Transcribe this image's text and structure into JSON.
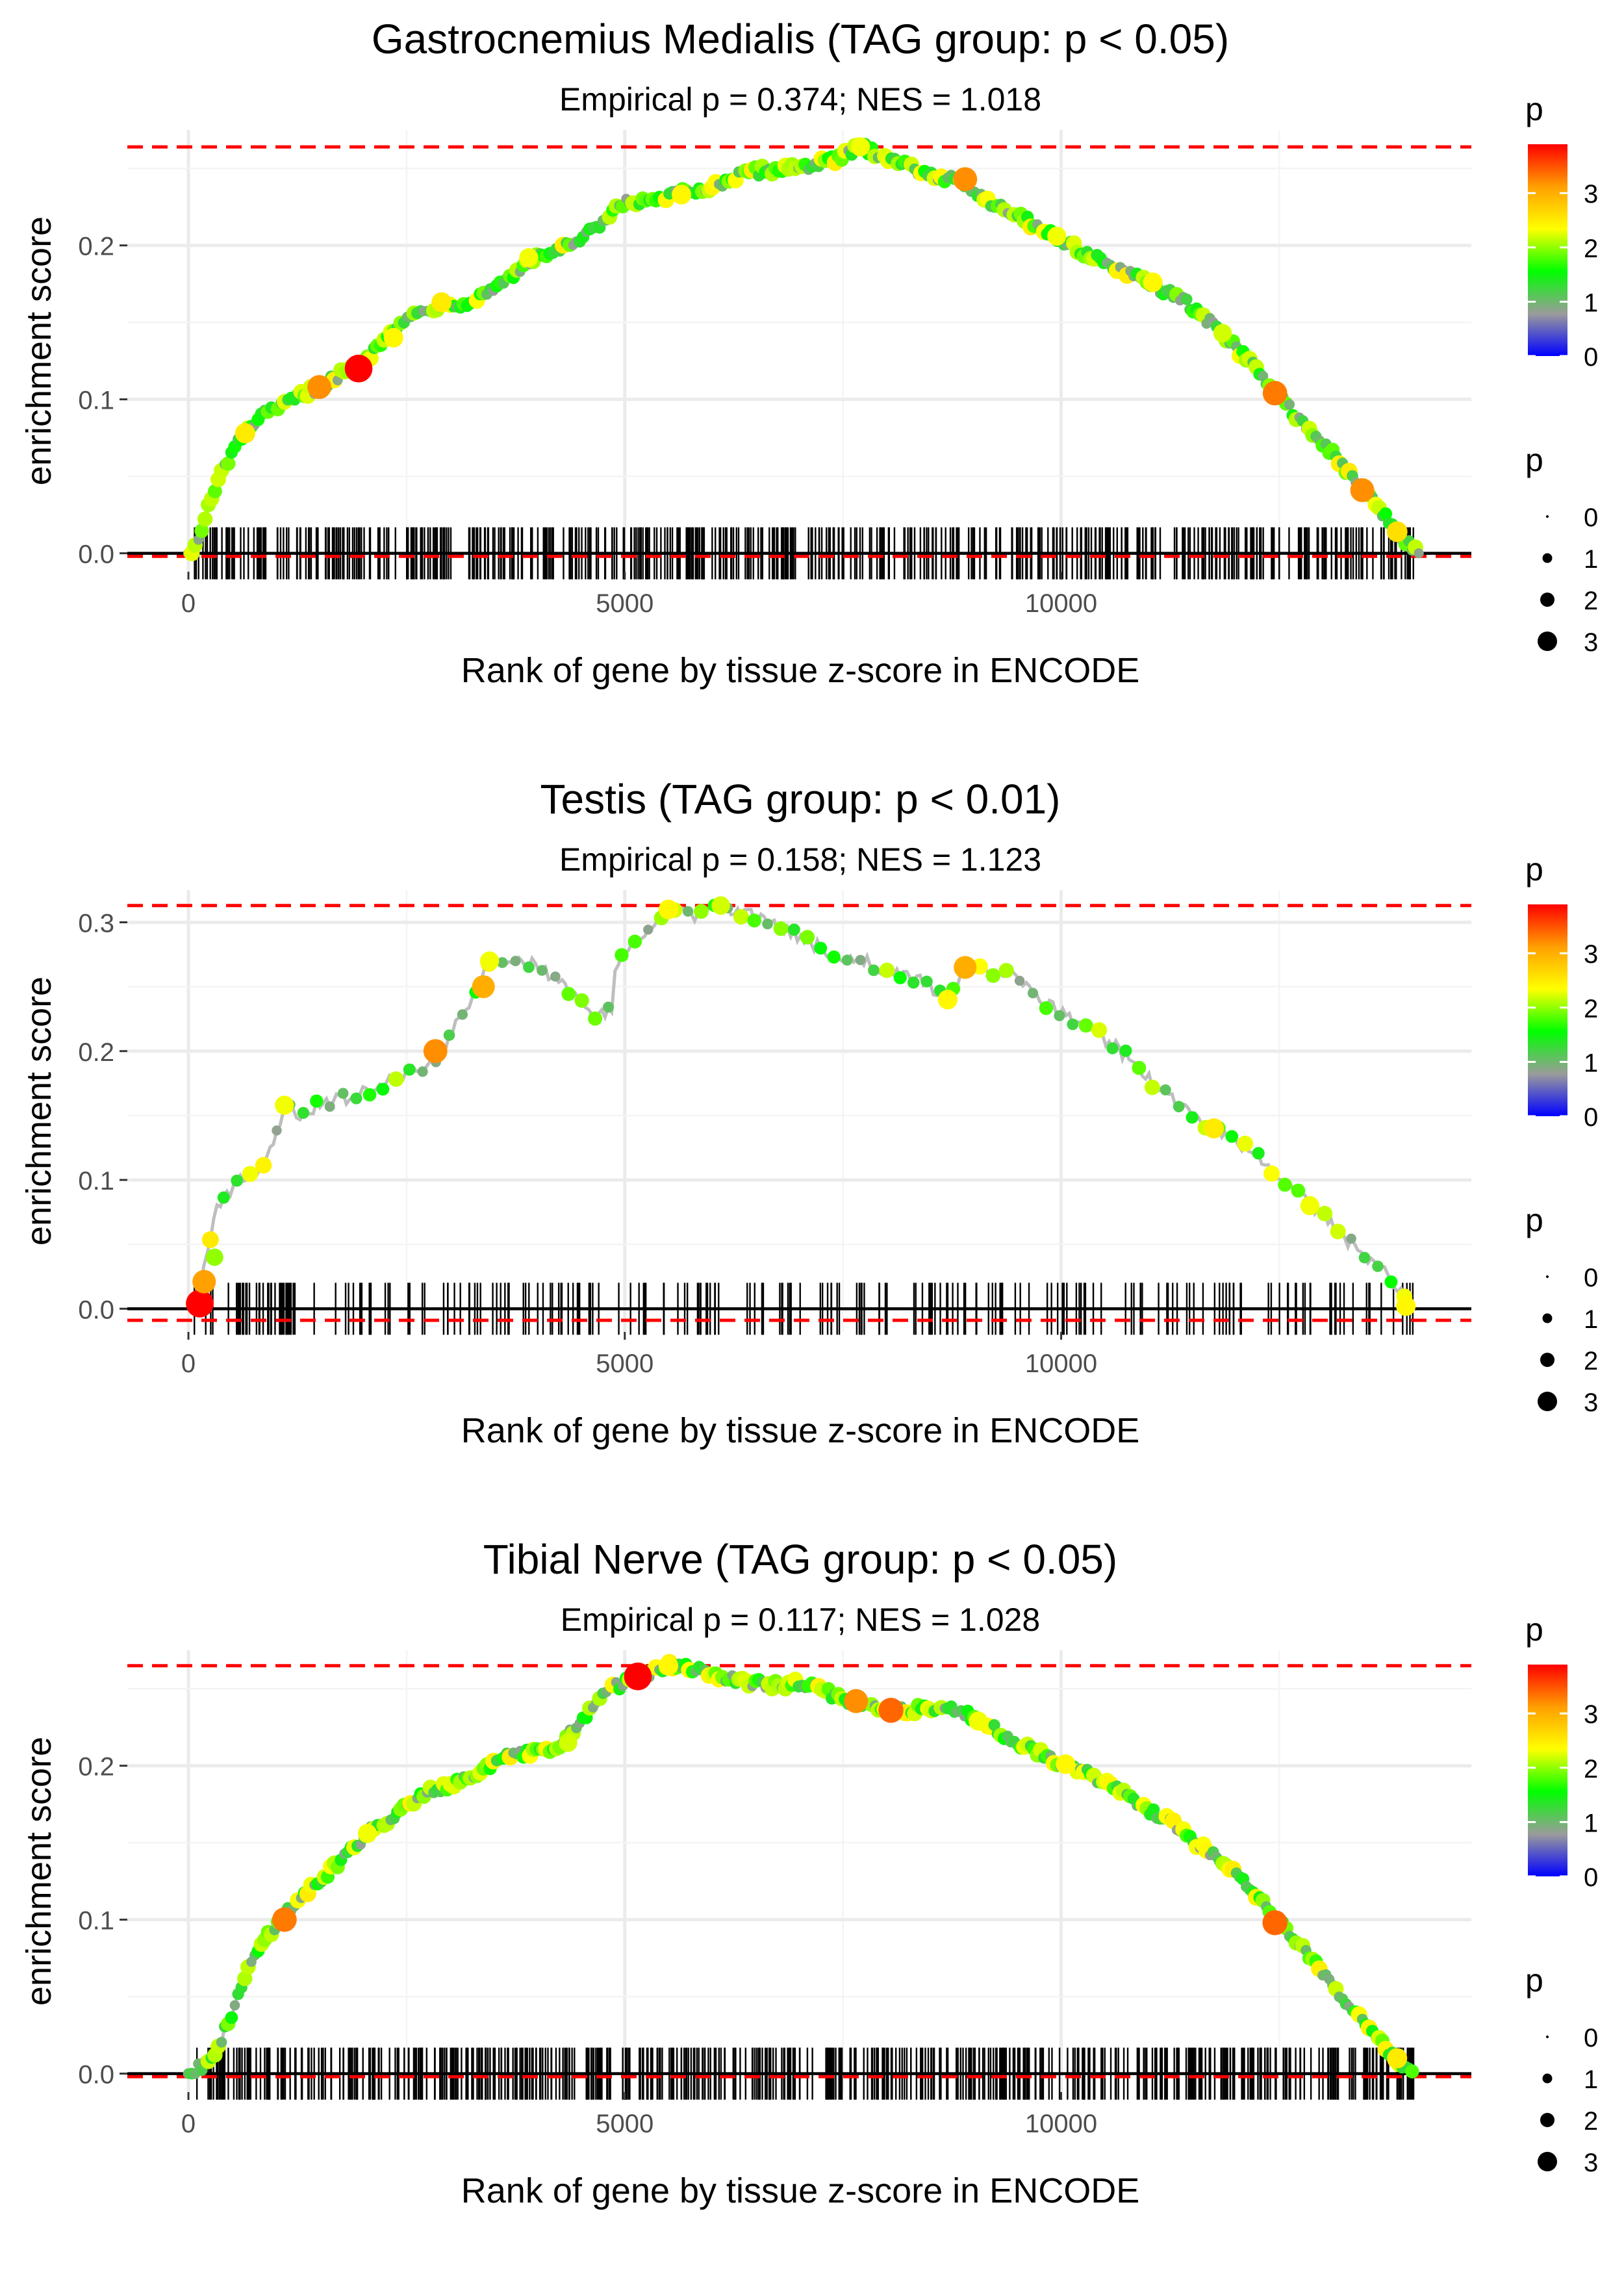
{
  "chart_data": [
    {
      "type": "line",
      "title": "Gastrocnemius Medialis (TAG group: p < 0.05)",
      "subtitle": "Empirical p = 0.374; NES = 1.018",
      "xlabel": "Rank of gene by tissue z-score in ENCODE",
      "ylabel": "enrichment score",
      "xlim": [
        -700,
        14700
      ],
      "ylim": [
        -0.012,
        0.275
      ],
      "xticks": [
        {
          "value": 0,
          "label": "0"
        },
        {
          "value": 5000,
          "label": "5000"
        },
        {
          "value": 10000,
          "label": "10000"
        }
      ],
      "yticks": [
        {
          "value": 0.0,
          "label": "0.0"
        },
        {
          "value": 0.1,
          "label": "0.1"
        },
        {
          "value": 0.2,
          "label": "0.2"
        }
      ],
      "max_es": 0.264,
      "min_es": -0.002,
      "hit_count": 520,
      "hit_range": [
        60,
        14050
      ],
      "seed": 7,
      "curve": [
        [
          0,
          0
        ],
        [
          100,
          0.005
        ],
        [
          200,
          0.025
        ],
        [
          400,
          0.055
        ],
        [
          600,
          0.075
        ],
        [
          800,
          0.088
        ],
        [
          1000,
          0.093
        ],
        [
          1200,
          0.1
        ],
        [
          1500,
          0.108
        ],
        [
          1800,
          0.118
        ],
        [
          2000,
          0.123
        ],
        [
          2300,
          0.145
        ],
        [
          2600,
          0.155
        ],
        [
          2900,
          0.162
        ],
        [
          3200,
          0.163
        ],
        [
          3500,
          0.172
        ],
        [
          3800,
          0.185
        ],
        [
          4100,
          0.195
        ],
        [
          4400,
          0.2
        ],
        [
          4700,
          0.212
        ],
        [
          5000,
          0.228
        ],
        [
          5300,
          0.228
        ],
        [
          5600,
          0.233
        ],
        [
          5900,
          0.236
        ],
        [
          6200,
          0.243
        ],
        [
          6500,
          0.248
        ],
        [
          6800,
          0.25
        ],
        [
          7100,
          0.252
        ],
        [
          7400,
          0.255
        ],
        [
          7700,
          0.264
        ],
        [
          8000,
          0.258
        ],
        [
          8300,
          0.25
        ],
        [
          8600,
          0.245
        ],
        [
          8900,
          0.24
        ],
        [
          9200,
          0.228
        ],
        [
          9500,
          0.22
        ],
        [
          9800,
          0.21
        ],
        [
          10100,
          0.2
        ],
        [
          10400,
          0.192
        ],
        [
          10700,
          0.183
        ],
        [
          11000,
          0.175
        ],
        [
          11300,
          0.168
        ],
        [
          11600,
          0.155
        ],
        [
          11900,
          0.14
        ],
        [
          12200,
          0.122
        ],
        [
          12500,
          0.102
        ],
        [
          12800,
          0.083
        ],
        [
          13100,
          0.065
        ],
        [
          13400,
          0.045
        ],
        [
          13700,
          0.025
        ],
        [
          13950,
          0.008
        ],
        [
          14100,
          0.0
        ]
      ],
      "highlights": [
        [
          1950,
          0.12,
          3.9
        ],
        [
          1500,
          0.108,
          3.2
        ],
        [
          8900,
          0.243,
          3.2
        ],
        [
          12450,
          0.104,
          3.3
        ],
        [
          13450,
          0.041,
          3.2
        ],
        [
          2350,
          0.14,
          2.4
        ],
        [
          2900,
          0.163,
          2.5
        ],
        [
          5650,
          0.233,
          2.4
        ],
        [
          9950,
          0.206,
          2.3
        ],
        [
          11050,
          0.176,
          2.4
        ],
        [
          650,
          0.078,
          2.5
        ],
        [
          3900,
          0.192,
          2.3
        ],
        [
          7700,
          0.264,
          2.3
        ],
        [
          11850,
          0.143,
          2.2
        ],
        [
          13850,
          0.014,
          2.6
        ]
      ],
      "color_scale": {
        "title": "p",
        "ticks": [
          0,
          1,
          2,
          3
        ],
        "stops": [
          "#0000ff",
          "#9b9b9b",
          "#00ff00",
          "#ffff00",
          "#ff9f00",
          "#ff0000"
        ],
        "max": 3.9
      },
      "size_legend": {
        "title": "p",
        "labels": [
          "0",
          "1",
          "2",
          "3"
        ]
      },
      "line_color": "#bebebe",
      "reference_color": "#ff0000",
      "hit_color": "#000000"
    },
    {
      "type": "line",
      "title": "Testis (TAG group: p < 0.01)",
      "subtitle": "Empirical p = 0.158; NES = 1.123",
      "xlabel": "Rank of gene by tissue z-score in ENCODE",
      "ylabel": "enrichment score",
      "xlim": [
        -700,
        14700
      ],
      "ylim": [
        -0.018,
        0.325
      ],
      "xticks": [
        {
          "value": 0,
          "label": "0"
        },
        {
          "value": 5000,
          "label": "5000"
        },
        {
          "value": 10000,
          "label": "10000"
        }
      ],
      "yticks": [
        {
          "value": 0.0,
          "label": "0.0"
        },
        {
          "value": 0.1,
          "label": "0.1"
        },
        {
          "value": 0.2,
          "label": "0.2"
        },
        {
          "value": 0.3,
          "label": "0.3"
        }
      ],
      "max_es": 0.313,
      "min_es": -0.009,
      "hit_count": 240,
      "hit_range": [
        60,
        14050
      ],
      "seed": 23,
      "curve": [
        [
          100,
          0.003
        ],
        [
          200,
          0.04
        ],
        [
          300,
          0.075
        ],
        [
          450,
          0.09
        ],
        [
          600,
          0.1
        ],
        [
          800,
          0.105
        ],
        [
          1000,
          0.135
        ],
        [
          1100,
          0.158
        ],
        [
          1300,
          0.148
        ],
        [
          1500,
          0.16
        ],
        [
          1800,
          0.163
        ],
        [
          2100,
          0.17
        ],
        [
          2400,
          0.18
        ],
        [
          2700,
          0.188
        ],
        [
          2900,
          0.2
        ],
        [
          3100,
          0.225
        ],
        [
          3300,
          0.248
        ],
        [
          3450,
          0.27
        ],
        [
          4000,
          0.268
        ],
        [
          4600,
          0.232
        ],
        [
          4700,
          0.228
        ],
        [
          4850,
          0.232
        ],
        [
          4900,
          0.27
        ],
        [
          5100,
          0.28
        ],
        [
          5300,
          0.295
        ],
        [
          5500,
          0.31
        ],
        [
          5800,
          0.305
        ],
        [
          6100,
          0.313
        ],
        [
          6500,
          0.305
        ],
        [
          6900,
          0.292
        ],
        [
          7400,
          0.275
        ],
        [
          7700,
          0.272
        ],
        [
          8000,
          0.262
        ],
        [
          8400,
          0.255
        ],
        [
          8700,
          0.24
        ],
        [
          8900,
          0.265
        ],
        [
          9200,
          0.262
        ],
        [
          9500,
          0.258
        ],
        [
          9800,
          0.238
        ],
        [
          10200,
          0.222
        ],
        [
          10600,
          0.205
        ],
        [
          11100,
          0.172
        ],
        [
          11500,
          0.15
        ],
        [
          11800,
          0.138
        ],
        [
          12200,
          0.12
        ],
        [
          12600,
          0.098
        ],
        [
          13000,
          0.072
        ],
        [
          13400,
          0.045
        ],
        [
          13700,
          0.03
        ],
        [
          14000,
          0.002
        ]
      ],
      "highlights": [
        [
          130,
          0.004,
          3.9
        ],
        [
          180,
          0.021,
          3.1
        ],
        [
          300,
          0.04,
          2.0
        ],
        [
          1100,
          0.158,
          2.3
        ],
        [
          2830,
          0.2,
          3.2
        ],
        [
          3380,
          0.25,
          3.0
        ],
        [
          3450,
          0.27,
          2.3
        ],
        [
          5500,
          0.31,
          2.4
        ],
        [
          6100,
          0.313,
          2.2
        ],
        [
          8900,
          0.265,
          3.0
        ],
        [
          8700,
          0.24,
          2.4
        ],
        [
          11750,
          0.14,
          2.5
        ],
        [
          12850,
          0.08,
          2.3
        ],
        [
          13950,
          0.002,
          2.4
        ]
      ],
      "color_scale": {
        "title": "p",
        "ticks": [
          0,
          1,
          2,
          3
        ],
        "stops": [
          "#0000ff",
          "#9b9b9b",
          "#00ff00",
          "#ffff00",
          "#ff9f00",
          "#ff0000"
        ],
        "max": 3.9
      },
      "size_legend": {
        "title": "p",
        "labels": [
          "0",
          "1",
          "2",
          "3"
        ]
      },
      "line_color": "#bebebe",
      "reference_color": "#ff0000",
      "hit_color": "#000000"
    },
    {
      "type": "line",
      "title": "Tibial Nerve (TAG group: p < 0.05)",
      "subtitle": "Empirical p = 0.117; NES = 1.028",
      "xlabel": "Rank of gene by tissue z-score in ENCODE",
      "ylabel": "enrichment score",
      "xlim": [
        -700,
        14700
      ],
      "ylim": [
        -0.012,
        0.275
      ],
      "xticks": [
        {
          "value": 0,
          "label": "0"
        },
        {
          "value": 5000,
          "label": "5000"
        },
        {
          "value": 10000,
          "label": "10000"
        }
      ],
      "yticks": [
        {
          "value": 0.0,
          "label": "0.0"
        },
        {
          "value": 0.1,
          "label": "0.1"
        },
        {
          "value": 0.2,
          "label": "0.2"
        }
      ],
      "max_es": 0.265,
      "min_es": -0.002,
      "hit_count": 560,
      "hit_range": [
        60,
        14050
      ],
      "seed": 41,
      "curve": [
        [
          0,
          0
        ],
        [
          300,
          0.01
        ],
        [
          500,
          0.04
        ],
        [
          700,
          0.07
        ],
        [
          900,
          0.09
        ],
        [
          1200,
          0.11
        ],
        [
          1500,
          0.125
        ],
        [
          1800,
          0.142
        ],
        [
          2100,
          0.158
        ],
        [
          2400,
          0.17
        ],
        [
          2700,
          0.183
        ],
        [
          3000,
          0.188
        ],
        [
          3300,
          0.195
        ],
        [
          3600,
          0.205
        ],
        [
          3900,
          0.208
        ],
        [
          4200,
          0.21
        ],
        [
          4500,
          0.23
        ],
        [
          4800,
          0.248
        ],
        [
          5100,
          0.258
        ],
        [
          5300,
          0.26
        ],
        [
          5500,
          0.265
        ],
        [
          5800,
          0.262
        ],
        [
          6100,
          0.258
        ],
        [
          6400,
          0.255
        ],
        [
          6700,
          0.252
        ],
        [
          7000,
          0.254
        ],
        [
          7300,
          0.248
        ],
        [
          7600,
          0.242
        ],
        [
          7900,
          0.238
        ],
        [
          8200,
          0.236
        ],
        [
          8500,
          0.238
        ],
        [
          8800,
          0.236
        ],
        [
          9100,
          0.228
        ],
        [
          9400,
          0.218
        ],
        [
          9700,
          0.21
        ],
        [
          10000,
          0.202
        ],
        [
          10300,
          0.195
        ],
        [
          10600,
          0.185
        ],
        [
          10900,
          0.175
        ],
        [
          11200,
          0.165
        ],
        [
          11500,
          0.152
        ],
        [
          11800,
          0.14
        ],
        [
          12100,
          0.125
        ],
        [
          12400,
          0.105
        ],
        [
          12700,
          0.085
        ],
        [
          13000,
          0.065
        ],
        [
          13300,
          0.045
        ],
        [
          13600,
          0.025
        ],
        [
          13900,
          0.005
        ],
        [
          14050,
          0.0
        ]
      ],
      "highlights": [
        [
          5150,
          0.258,
          3.9
        ],
        [
          1100,
          0.1,
          3.3
        ],
        [
          7650,
          0.242,
          3.2
        ],
        [
          8050,
          0.236,
          3.4
        ],
        [
          12450,
          0.098,
          3.4
        ],
        [
          5500,
          0.265,
          2.4
        ],
        [
          4350,
          0.215,
          2.2
        ],
        [
          9050,
          0.229,
          2.3
        ],
        [
          10050,
          0.201,
          2.4
        ],
        [
          13850,
          0.01,
          2.5
        ],
        [
          2050,
          0.156,
          2.3
        ]
      ],
      "color_scale": {
        "title": "p",
        "ticks": [
          0,
          1,
          2,
          3
        ],
        "stops": [
          "#0000ff",
          "#9b9b9b",
          "#00ff00",
          "#ffff00",
          "#ff9f00",
          "#ff0000"
        ],
        "max": 3.9
      },
      "size_legend": {
        "title": "p",
        "labels": [
          "0",
          "1",
          "2",
          "3"
        ]
      },
      "line_color": "#bebebe",
      "reference_color": "#ff0000",
      "hit_color": "#000000"
    }
  ]
}
